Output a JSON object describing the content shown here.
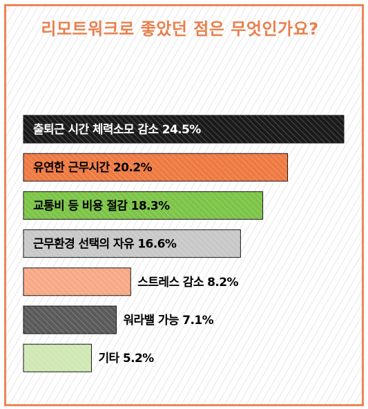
{
  "chart_data": {
    "type": "bar",
    "orientation": "horizontal",
    "title": "리모트워크로 좋았던 점은 무엇인가요?",
    "categories": [
      "출퇴근 시간 체력소모 감소",
      "유연한 근무시간",
      "교통비 등 비용 절감",
      "근무환경 선택의 자유",
      "스트레스 감소",
      "워라밸 가능",
      "기타"
    ],
    "values": [
      24.5,
      20.2,
      18.3,
      16.6,
      8.2,
      7.1,
      5.2
    ],
    "labels": [
      "출퇴근 시간 체력소모 감소 24.5%",
      "유연한 근무시간 20.2%",
      "교통비 등 비용 절감 18.3%",
      "근무환경 선택의 자유 16.6%",
      "스트레스 감소 8.2%",
      "워라밸 가능 7.1%",
      "기타 5.2%"
    ],
    "unit": "%",
    "colors": [
      "#1a1a1a",
      "#ee7a42",
      "#7cc447",
      "#c8c8c8",
      "#f7a987",
      "#5a5a5a",
      "#cfe8b4"
    ],
    "label_colors": [
      "#ffffff",
      "#000000",
      "#000000",
      "#000000",
      "#000000",
      "#000000",
      "#000000"
    ],
    "accent": "#e97f4c",
    "xlabel": "",
    "ylabel": ""
  }
}
